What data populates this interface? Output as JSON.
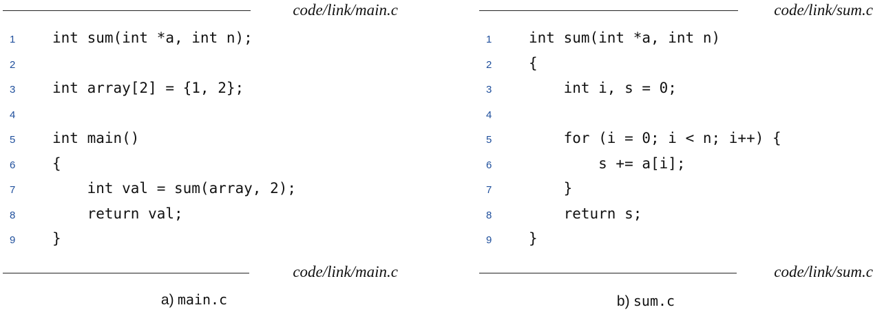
{
  "panels": [
    {
      "header_path": "code/link/main.c",
      "footer_path": "code/link/main.c",
      "lines": [
        {
          "num": "1",
          "code": "int sum(int *a, int n);"
        },
        {
          "num": "2",
          "code": ""
        },
        {
          "num": "3",
          "code": "int array[2] = {1, 2};"
        },
        {
          "num": "4",
          "code": ""
        },
        {
          "num": "5",
          "code": "int main()"
        },
        {
          "num": "6",
          "code": "{"
        },
        {
          "num": "7",
          "code": "    int val = sum(array, 2);"
        },
        {
          "num": "8",
          "code": "    return val;"
        },
        {
          "num": "9",
          "code": "}"
        }
      ],
      "caption_label": "a)",
      "caption_file": "main.c"
    },
    {
      "header_path": "code/link/sum.c",
      "footer_path": "code/link/sum.c",
      "lines": [
        {
          "num": "1",
          "code": "int sum(int *a, int n)"
        },
        {
          "num": "2",
          "code": "{"
        },
        {
          "num": "3",
          "code": "    int i, s = 0;"
        },
        {
          "num": "4",
          "code": ""
        },
        {
          "num": "5",
          "code": "    for (i = 0; i < n; i++) {"
        },
        {
          "num": "6",
          "code": "        s += a[i];"
        },
        {
          "num": "7",
          "code": "    }"
        },
        {
          "num": "8",
          "code": "    return s;"
        },
        {
          "num": "9",
          "code": "}"
        }
      ],
      "caption_label": "b)",
      "caption_file": "sum.c"
    }
  ]
}
